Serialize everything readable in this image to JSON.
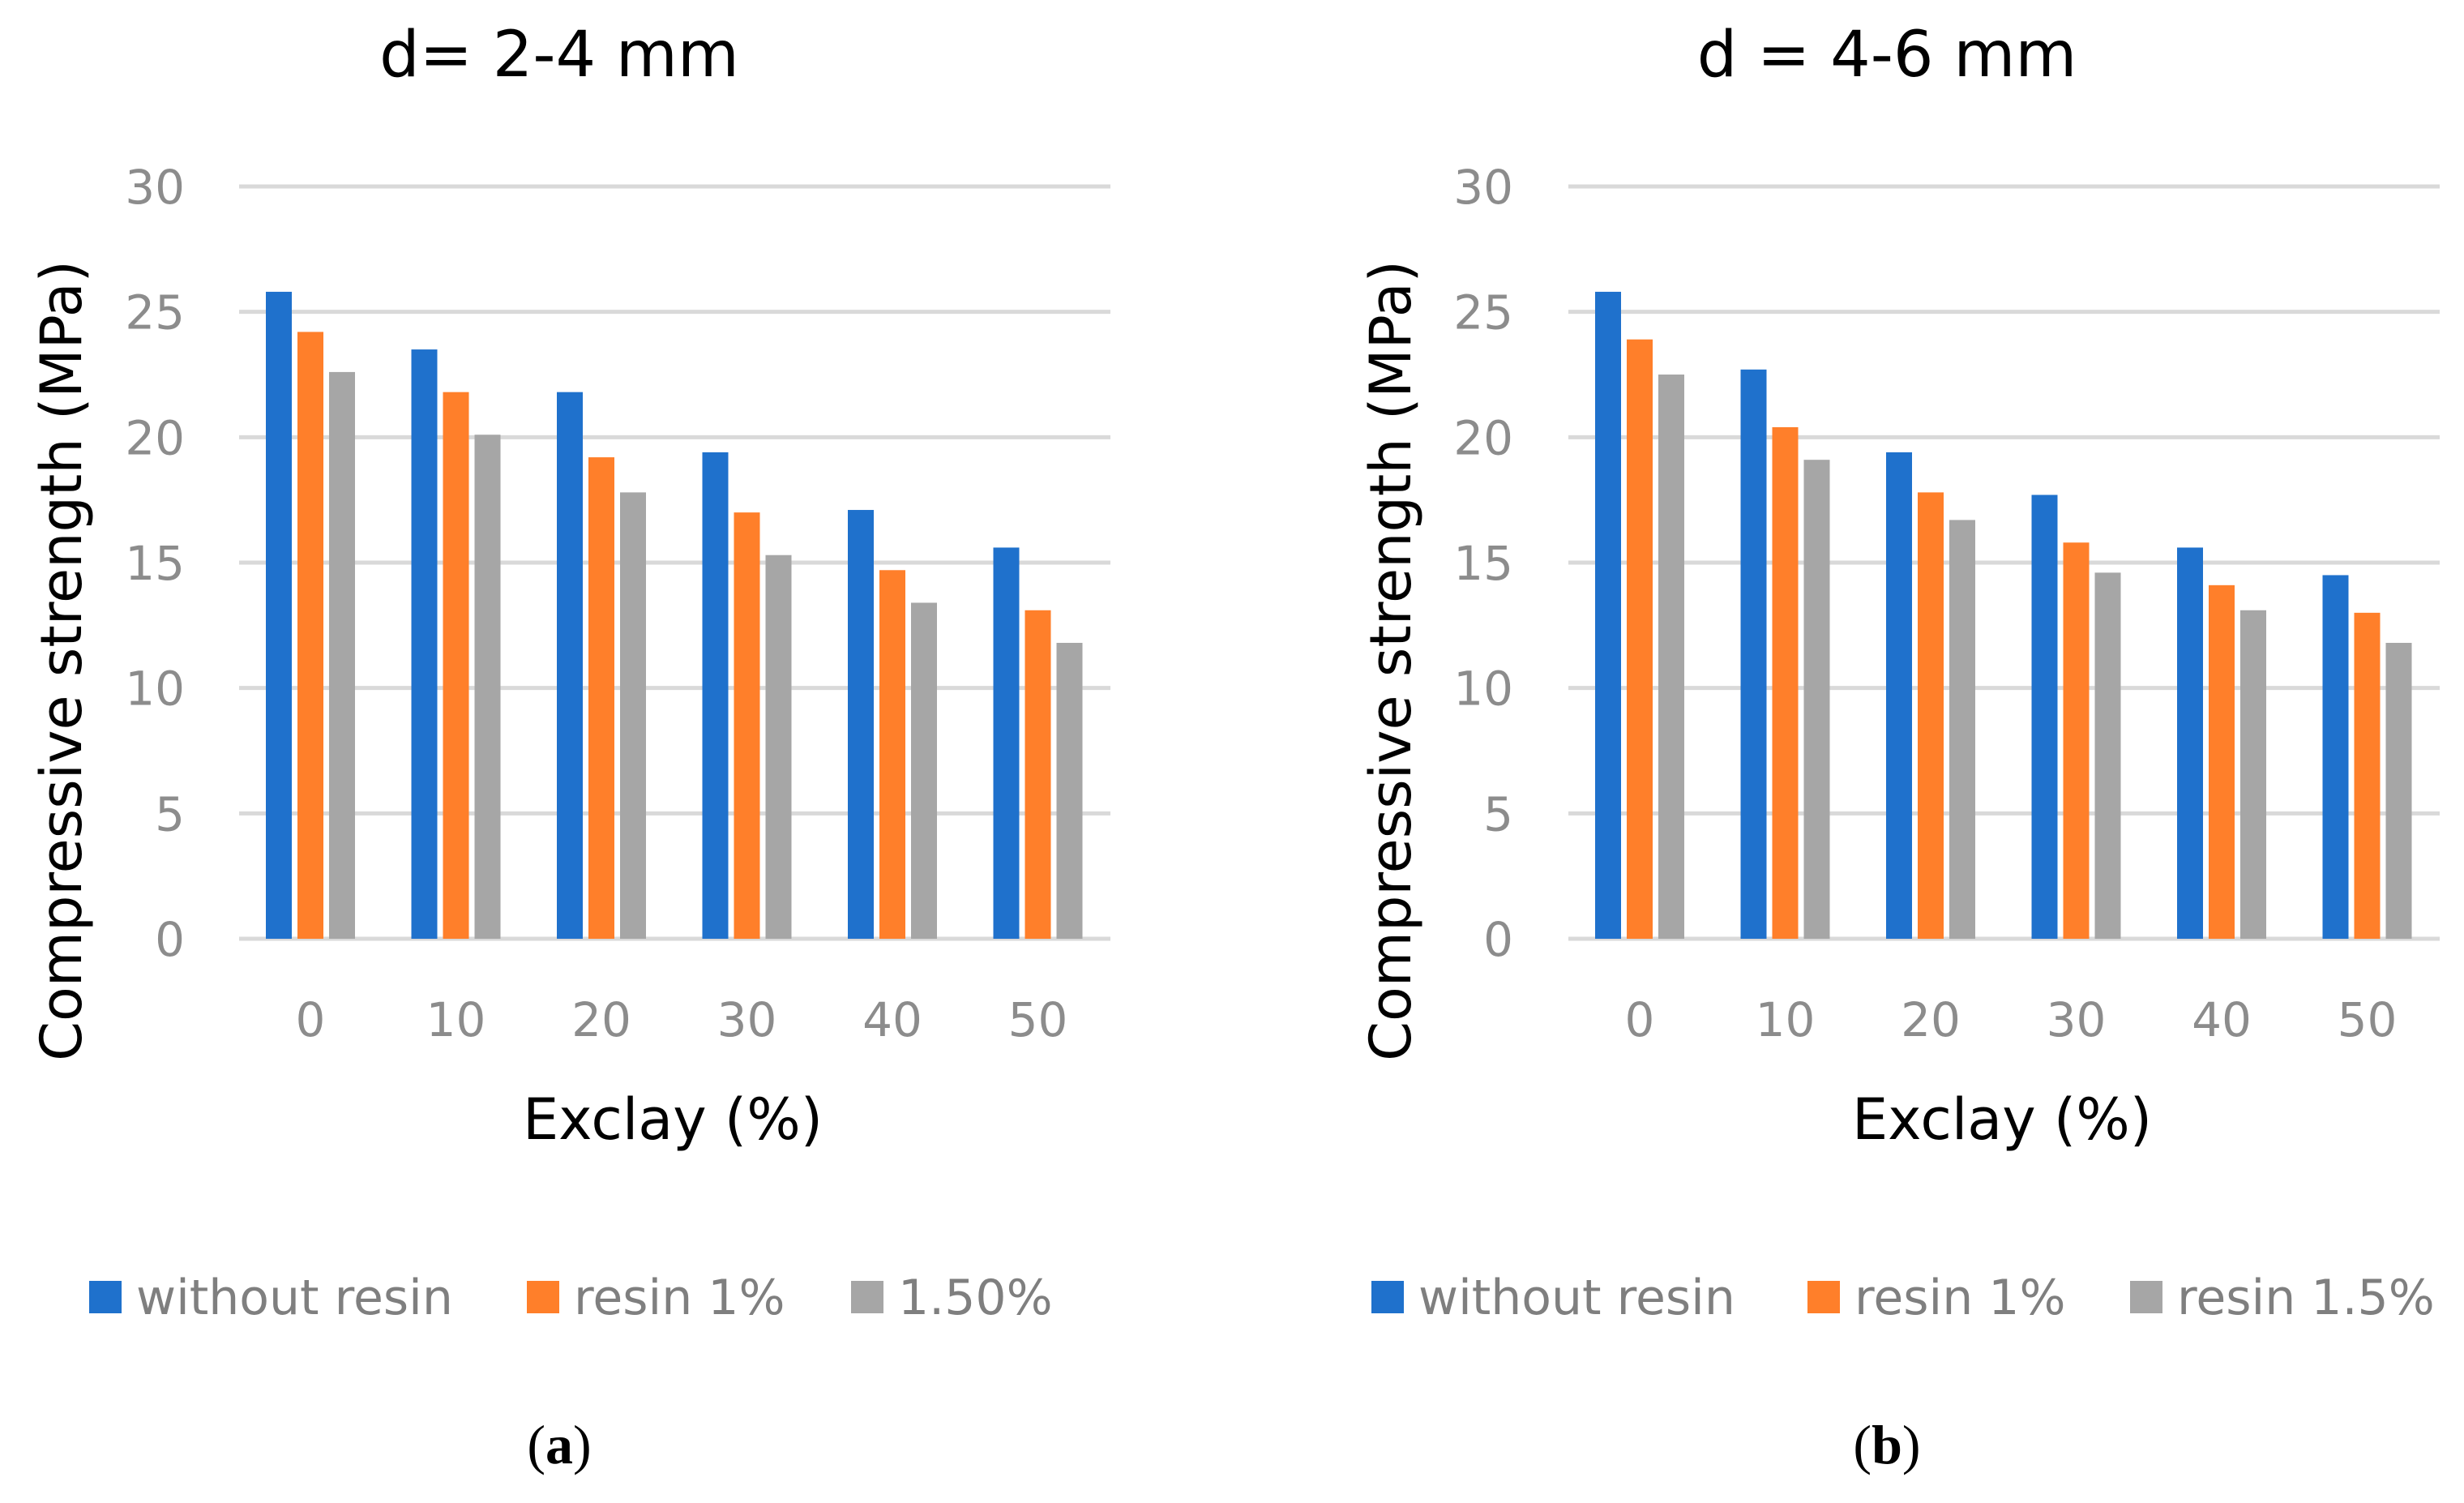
{
  "chart_data": [
    {
      "type": "bar",
      "title": "d= 2-4 mm",
      "xlabel": "Exclay (%)",
      "ylabel": "Compressive strength (MPa)",
      "ylim": [
        0,
        30
      ],
      "yticks": [
        "0",
        "5",
        "10",
        "15",
        "20",
        "25",
        "30"
      ],
      "categories": [
        "0",
        "10",
        "20",
        "30",
        "40",
        "50"
      ],
      "grid": true,
      "legend_position": "bottom",
      "series": [
        {
          "name": "without resin",
          "color": "#1f71cc",
          "values": [
            25.8,
            23.5,
            21.8,
            19.4,
            17.1,
            15.6
          ]
        },
        {
          "name": "resin 1%",
          "color": "#ff7f2a",
          "values": [
            24.2,
            21.8,
            19.2,
            17.0,
            14.7,
            13.1
          ]
        },
        {
          "name": "1.50%",
          "color": "#a6a6a6",
          "values": [
            22.6,
            20.1,
            17.8,
            15.3,
            13.4,
            11.8
          ]
        }
      ],
      "caption_label": "a"
    },
    {
      "type": "bar",
      "title": "d = 4-6 mm",
      "xlabel": "Exclay (%)",
      "ylabel": "Compressive strength (MPa)",
      "ylim": [
        0,
        30
      ],
      "yticks": [
        "0",
        "5",
        "10",
        "15",
        "20",
        "25",
        "30"
      ],
      "categories": [
        "0",
        "10",
        "20",
        "30",
        "40",
        "50"
      ],
      "grid": true,
      "legend_position": "bottom",
      "series": [
        {
          "name": "without resin",
          "color": "#1f71cc",
          "values": [
            25.8,
            22.7,
            19.4,
            17.7,
            15.6,
            14.5
          ]
        },
        {
          "name": "resin 1%",
          "color": "#ff7f2a",
          "values": [
            23.9,
            20.4,
            17.8,
            15.8,
            14.1,
            13.0
          ]
        },
        {
          "name": "resin 1.5%",
          "color": "#a6a6a6",
          "values": [
            22.5,
            19.1,
            16.7,
            14.6,
            13.1,
            11.8
          ]
        }
      ],
      "caption_label": "b"
    }
  ]
}
